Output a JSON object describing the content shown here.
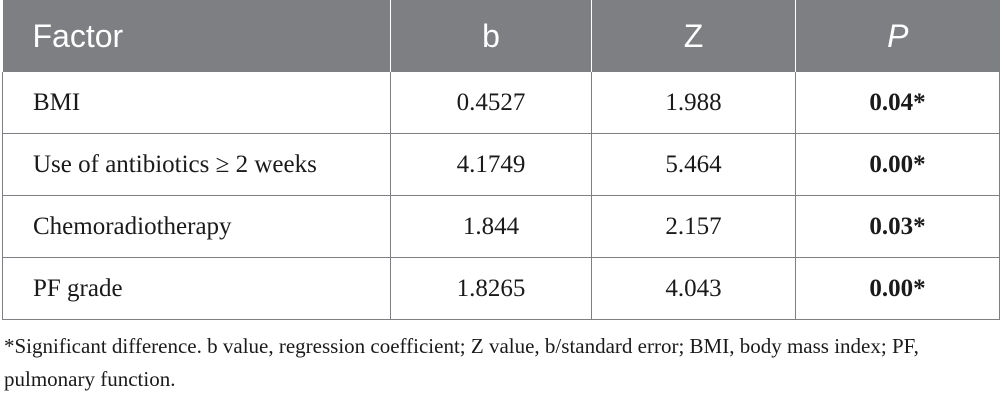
{
  "table": {
    "headers": [
      "Factor",
      "b",
      "Z",
      "P"
    ],
    "rows": [
      {
        "factor": "BMI",
        "b": "0.4527",
        "z": "1.988",
        "p": "0.04*"
      },
      {
        "factor": "Use of antibiotics ≥ 2 weeks",
        "b": "4.1749",
        "z": "5.464",
        "p": "0.00*"
      },
      {
        "factor": "Chemoradiotherapy",
        "b": "1.844",
        "z": "2.157",
        "p": "0.03*"
      },
      {
        "factor": "PF grade",
        "b": "1.8265",
        "z": "4.043",
        "p": "0.00*"
      }
    ]
  },
  "footnote": "*Significant difference. b value, regression coefficient; Z value, b/standard error; BMI, body mass index; PF, pulmonary function.",
  "colors": {
    "header_bg": "#7d7f82",
    "header_text": "#ffffff",
    "border": "#7d7f82"
  }
}
